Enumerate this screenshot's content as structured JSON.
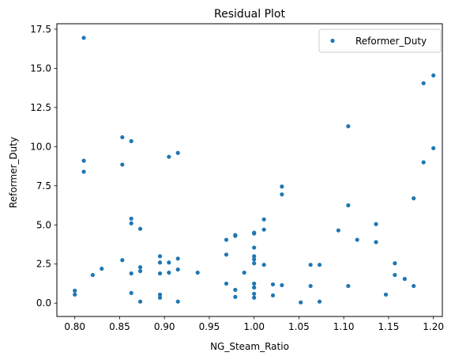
{
  "chart_data": {
    "type": "scatter",
    "title": "Residual Plot",
    "xlabel": "NG_Steam_Ratio",
    "ylabel": "Reformer_Duty",
    "xlim": [
      0.78,
      1.21
    ],
    "ylim": [
      -0.85,
      17.85
    ],
    "xticks": [
      "0.80",
      "0.85",
      "0.90",
      "0.95",
      "1.00",
      "1.05",
      "1.10",
      "1.15",
      "1.20"
    ],
    "yticks": [
      "0.0",
      "2.5",
      "5.0",
      "7.5",
      "10.0",
      "12.5",
      "15.0",
      "17.5"
    ],
    "grid": false,
    "legend_position": "top-right",
    "color": "#1f77b4",
    "series": [
      {
        "name": "Reformer_Duty",
        "x": [
          0.8,
          0.8,
          0.81,
          0.81,
          0.81,
          0.82,
          0.83,
          0.853,
          0.853,
          0.853,
          0.863,
          0.863,
          0.863,
          0.863,
          0.863,
          0.873,
          0.873,
          0.873,
          0.873,
          0.895,
          0.895,
          0.895,
          0.895,
          0.895,
          0.905,
          0.905,
          0.905,
          0.915,
          0.915,
          0.915,
          0.915,
          0.937,
          0.969,
          0.969,
          0.969,
          0.979,
          0.979,
          0.979,
          0.979,
          0.989,
          1.0,
          1.0,
          1.0,
          1.0,
          1.0,
          1.0,
          1.0,
          1.0,
          1.0,
          1.0,
          1.011,
          1.011,
          1.011,
          1.021,
          1.021,
          1.031,
          1.031,
          1.031,
          1.052,
          1.063,
          1.063,
          1.073,
          1.073,
          1.094,
          1.105,
          1.105,
          1.105,
          1.115,
          1.136,
          1.136,
          1.147,
          1.157,
          1.157,
          1.168,
          1.178,
          1.178,
          1.189,
          1.189,
          1.2,
          1.2
        ],
        "y": [
          0.55,
          0.8,
          16.95,
          9.1,
          8.4,
          1.8,
          2.2,
          10.6,
          8.85,
          2.75,
          10.35,
          5.4,
          5.1,
          1.9,
          0.65,
          4.75,
          2.3,
          2.05,
          0.1,
          3.0,
          2.6,
          1.9,
          0.55,
          0.35,
          9.35,
          2.6,
          1.95,
          9.6,
          2.85,
          2.15,
          0.1,
          1.95,
          4.05,
          3.1,
          1.25,
          4.35,
          4.3,
          0.85,
          0.4,
          1.95,
          4.45,
          4.5,
          3.55,
          3.0,
          2.8,
          2.55,
          1.25,
          1.0,
          0.6,
          0.35,
          5.35,
          4.7,
          2.45,
          1.2,
          0.5,
          7.45,
          6.95,
          1.15,
          0.05,
          2.45,
          1.1,
          2.45,
          0.1,
          4.65,
          11.3,
          6.25,
          1.1,
          4.05,
          5.05,
          3.9,
          0.55,
          2.55,
          1.8,
          1.55,
          6.7,
          1.1,
          14.05,
          9.0,
          14.55,
          9.9
        ]
      }
    ]
  }
}
